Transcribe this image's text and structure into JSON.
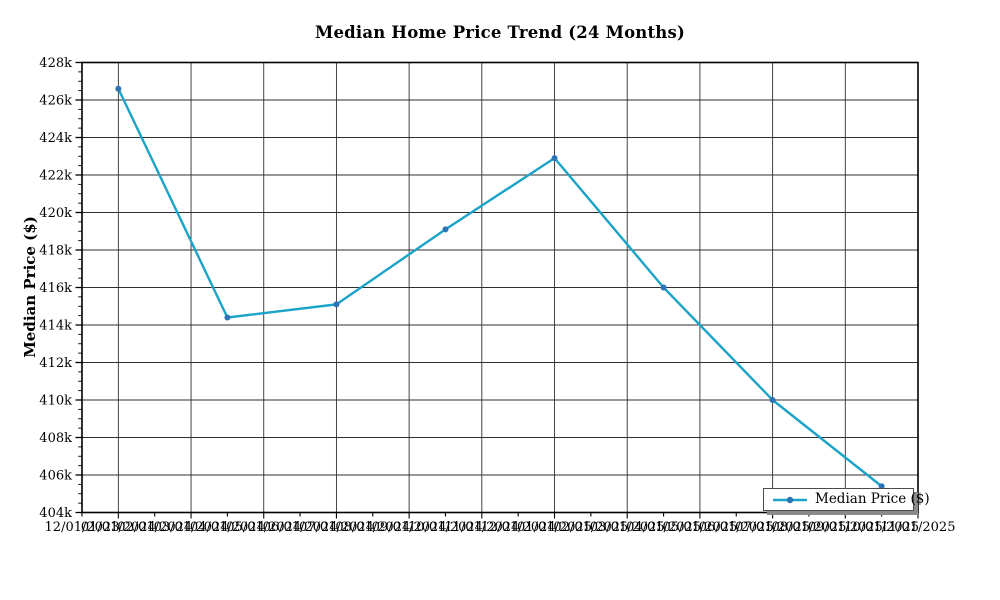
{
  "chart_data": {
    "type": "line",
    "title": "Median Home Price Trend (24 Months)",
    "ylabel": "Median Price ($)",
    "xlabel": "",
    "grid": "on",
    "legend_position": "lower right",
    "legend_label": "Median Price ($)",
    "ylim": [
      404000,
      428000
    ],
    "y_ticks": [
      {
        "label": "428k",
        "value": 428000
      },
      {
        "label": "426k",
        "value": 426000
      },
      {
        "label": "424k",
        "value": 424000
      },
      {
        "label": "422k",
        "value": 422000
      },
      {
        "label": "420k",
        "value": 420000
      },
      {
        "label": "418k",
        "value": 418000
      },
      {
        "label": "416k",
        "value": 416000
      },
      {
        "label": "414k",
        "value": 414000
      },
      {
        "label": "412k",
        "value": 412000
      },
      {
        "label": "410k",
        "value": 410000
      },
      {
        "label": "408k",
        "value": 408000
      },
      {
        "label": "406k",
        "value": 406000
      },
      {
        "label": "404k",
        "value": 404000
      }
    ],
    "x_tick_labels": [
      "12/01/2023",
      "01/01/2024",
      "02/01/2024",
      "03/01/2024",
      "04/01/2024",
      "05/01/2024",
      "06/01/2024",
      "07/01/2024",
      "08/01/2024",
      "09/01/2024",
      "10/01/2024",
      "11/01/2024",
      "12/01/2024",
      "01/01/2025",
      "02/01/2025",
      "03/01/2025",
      "04/01/2025",
      "05/01/2025",
      "06/01/2025",
      "07/01/2025",
      "08/01/2025",
      "09/01/2025",
      "10/01/2025",
      "11/01/2025"
    ],
    "series": [
      {
        "name": "Median Price ($)",
        "x": [
          "01/01/2024",
          "04/01/2024",
          "07/01/2024",
          "10/01/2024",
          "01/01/2025",
          "04/01/2025",
          "07/01/2025",
          "10/01/2025"
        ],
        "values": [
          426600,
          414400,
          415100,
          419100,
          422900,
          416000,
          410000,
          405400
        ],
        "line_color": "#1ba3c8",
        "marker_color": "#2d74b5"
      }
    ],
    "colors": {
      "grid": "#2f2f2f",
      "spine": "#000000",
      "text": "#000000",
      "legend_border": "#4a4a4a",
      "legend_shadow": "#8a8a8a",
      "background": "#ffffff"
    }
  }
}
